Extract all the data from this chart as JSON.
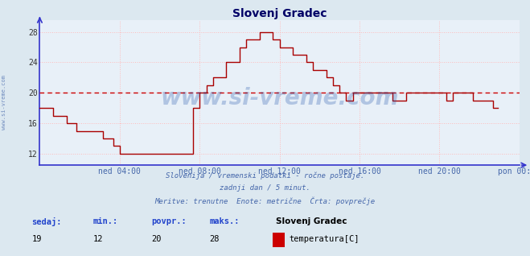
{
  "title": "Slovenj Gradec",
  "bg_color": "#dce8f0",
  "plot_bg_color": "#e8f0f8",
  "line_color": "#aa0000",
  "avg_line_color": "#cc0000",
  "avg_value": 20,
  "xlabel_color": "#4466aa",
  "grid_color": "#ffbbbb",
  "axis_color": "#3333cc",
  "ylim": [
    10.5,
    29.5
  ],
  "yticks": [
    12,
    16,
    20,
    24,
    28
  ],
  "xlim": [
    0,
    288
  ],
  "xtick_positions": [
    48,
    96,
    144,
    192,
    240,
    288
  ],
  "xtick_labels": [
    "ned 04:00",
    "ned 08:00",
    "ned 12:00",
    "ned 16:00",
    "ned 20:00",
    "pon 00:00"
  ],
  "footer_lines": [
    "Slovenija / vremenski podatki - ročne postaje.",
    "zadnji dan / 5 minut.",
    "Meritve: trenutne  Enote: metrične  Črta: povprečje"
  ],
  "footer_color": "#4466aa",
  "stats_labels": [
    "sedaj:",
    "min.:",
    "povpr.:",
    "maks.:"
  ],
  "stats_values": [
    "19",
    "12",
    "20",
    "28"
  ],
  "stats_color": "#2244cc",
  "station_name": "Slovenj Gradec",
  "measure_label": "temperatura[C]",
  "legend_color": "#cc0000",
  "watermark_text": "www.si-vreme.com",
  "watermark_color": "#2255aa",
  "watermark_alpha": 0.28,
  "left_text": "www.si-vreme.com",
  "left_text_color": "#4466aa",
  "title_color": "#000066",
  "title_fontsize": 10,
  "temp_data": [
    18,
    18,
    18,
    18,
    18,
    18,
    18,
    18,
    17,
    17,
    17,
    17,
    17,
    17,
    17,
    17,
    16,
    16,
    16,
    16,
    16,
    16,
    15,
    15,
    15,
    15,
    15,
    15,
    15,
    15,
    15,
    15,
    15,
    15,
    15,
    15,
    15,
    15,
    14,
    14,
    14,
    14,
    14,
    14,
    13,
    13,
    13,
    13,
    12,
    12,
    12,
    12,
    12,
    12,
    12,
    12,
    12,
    12,
    12,
    12,
    12,
    12,
    12,
    12,
    12,
    12,
    12,
    12,
    12,
    12,
    12,
    12,
    12,
    12,
    12,
    12,
    12,
    12,
    12,
    12,
    12,
    12,
    12,
    12,
    12,
    12,
    12,
    12,
    12,
    12,
    12,
    12,
    18,
    18,
    18,
    18,
    20,
    20,
    20,
    20,
    21,
    21,
    21,
    21,
    22,
    22,
    22,
    22,
    22,
    22,
    22,
    22,
    24,
    24,
    24,
    24,
    24,
    24,
    24,
    24,
    26,
    26,
    26,
    26,
    27,
    27,
    27,
    27,
    27,
    27,
    27,
    27,
    28,
    28,
    28,
    28,
    28,
    28,
    28,
    28,
    27,
    27,
    27,
    27,
    26,
    26,
    26,
    26,
    26,
    26,
    26,
    26,
    25,
    25,
    25,
    25,
    25,
    25,
    25,
    25,
    24,
    24,
    24,
    24,
    23,
    23,
    23,
    23,
    23,
    23,
    23,
    23,
    22,
    22,
    22,
    22,
    21,
    21,
    21,
    21,
    20,
    20,
    20,
    20,
    19,
    19,
    19,
    19,
    20,
    20,
    20,
    20,
    20,
    20,
    20,
    20,
    20,
    20,
    20,
    20,
    20,
    20,
    20,
    20,
    20,
    20,
    20,
    20,
    20,
    20,
    20,
    20,
    19,
    19,
    19,
    19,
    19,
    19,
    19,
    19,
    20,
    20,
    20,
    20,
    20,
    20,
    20,
    20,
    20,
    20,
    20,
    20,
    20,
    20,
    20,
    20,
    20,
    20,
    20,
    20,
    20,
    20,
    20,
    20,
    19,
    19,
    19,
    19,
    20,
    20,
    20,
    20,
    20,
    20,
    20,
    20,
    20,
    20,
    20,
    20,
    19,
    19,
    19,
    19,
    19,
    19,
    19,
    19,
    19,
    19,
    19,
    19,
    18,
    18,
    18,
    18
  ]
}
